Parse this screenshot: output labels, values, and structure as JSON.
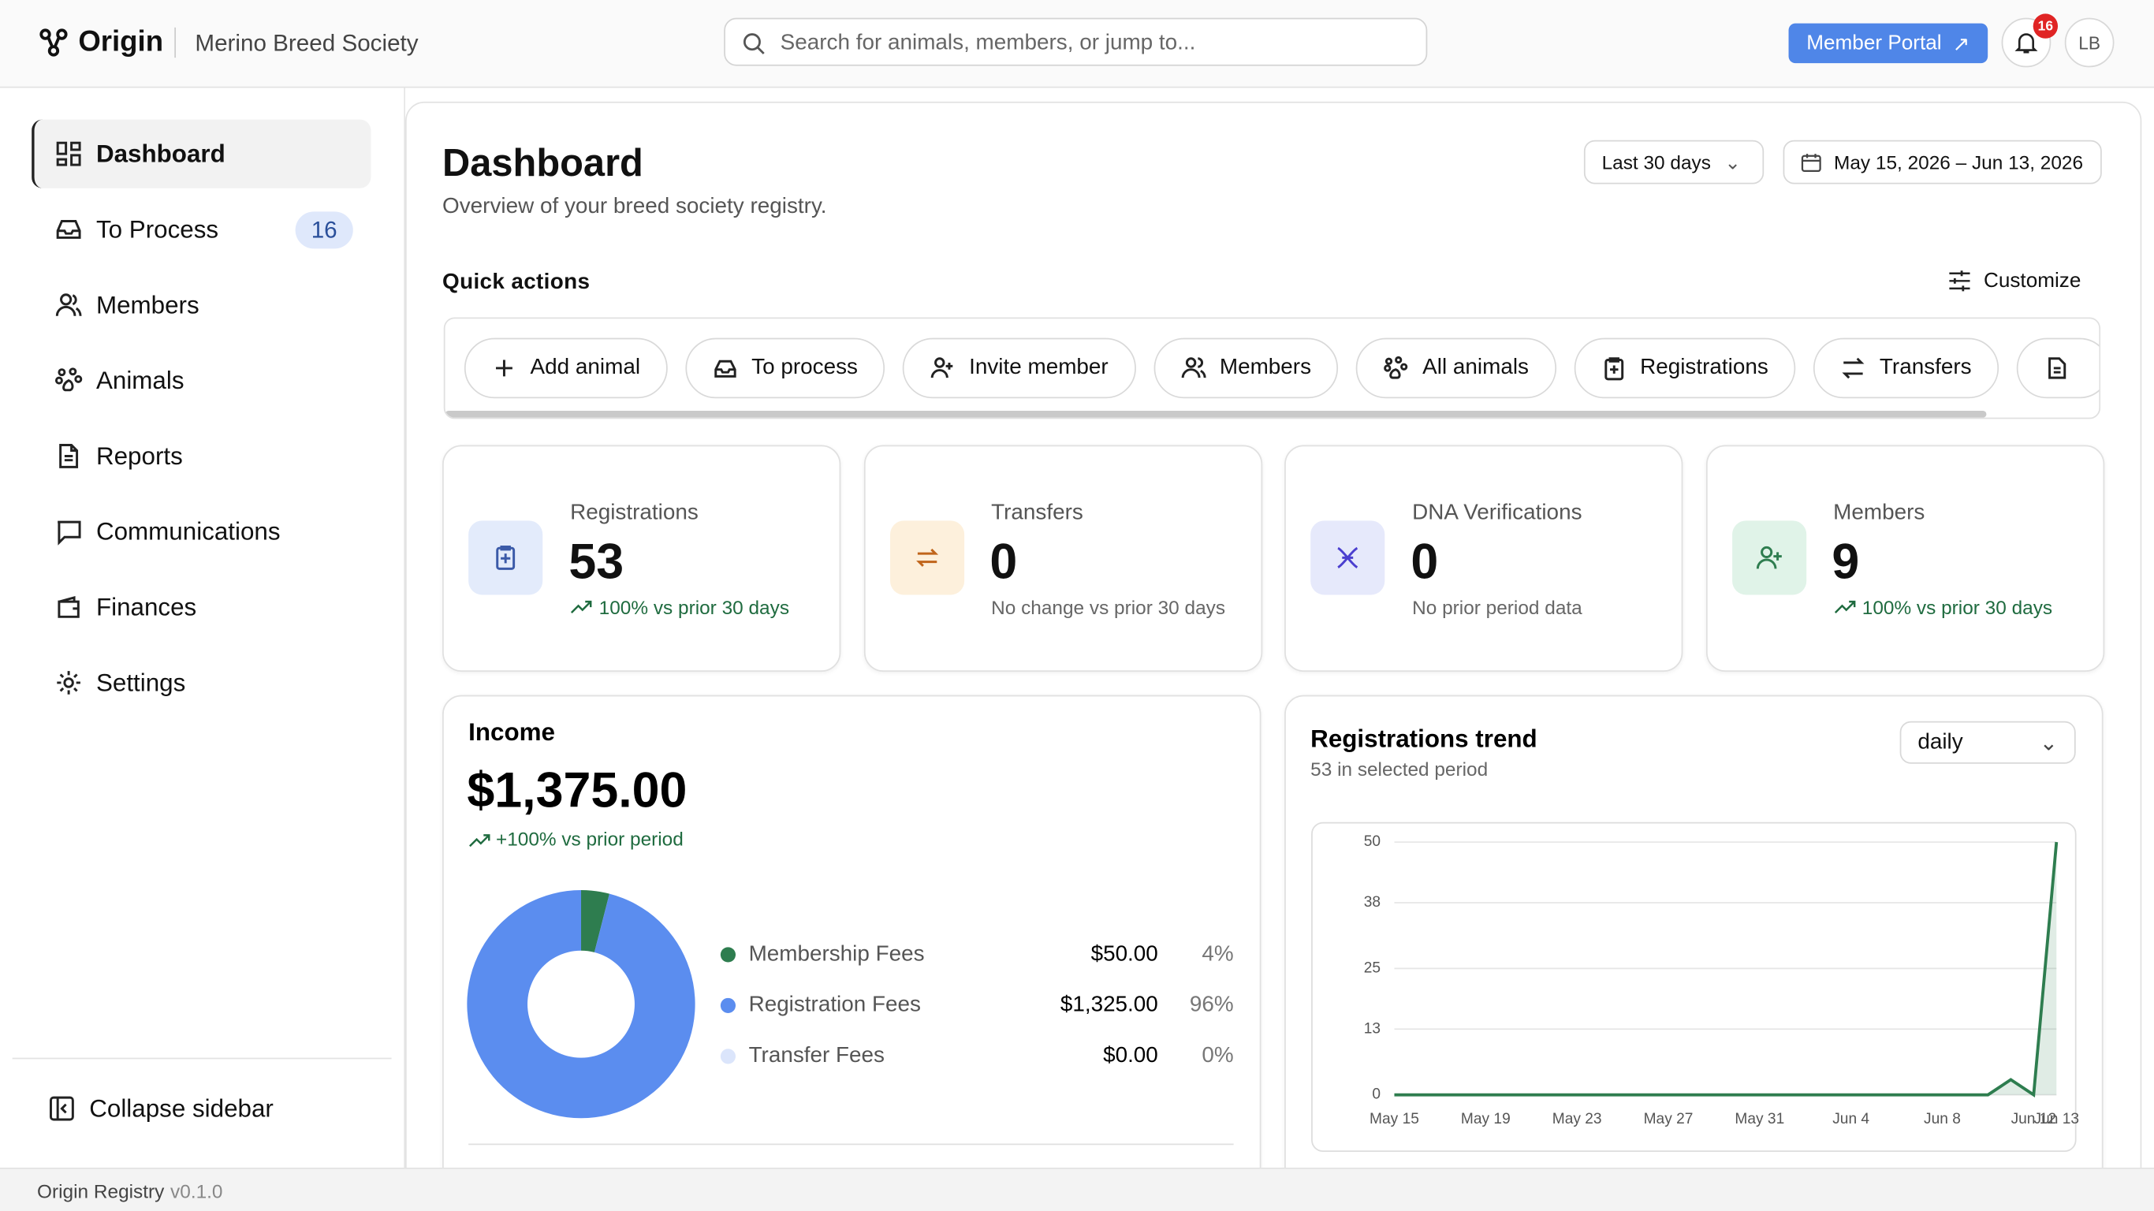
{
  "header": {
    "brand": "Origin",
    "org": "Merino Breed Society",
    "search_placeholder": "Search for animals, members, or jump to...",
    "portal_button": "Member Portal",
    "notifications": "16",
    "avatar": "LB"
  },
  "sidebar": {
    "items": [
      {
        "label": "Dashboard"
      },
      {
        "label": "To Process",
        "badge": "16"
      },
      {
        "label": "Members"
      },
      {
        "label": "Animals"
      },
      {
        "label": "Reports"
      },
      {
        "label": "Communications"
      },
      {
        "label": "Finances"
      },
      {
        "label": "Settings"
      }
    ],
    "collapse": "Collapse sidebar"
  },
  "footer": {
    "app": "Origin Registry",
    "version": "v0.1.0"
  },
  "page": {
    "title": "Dashboard",
    "subtitle": "Overview of your breed society registry.",
    "range_select": "Last 30 days",
    "date_range": "May 15, 2026 – Jun 13, 2026",
    "quick_actions": {
      "title": "Quick actions",
      "customize": "Customize",
      "actions": [
        "Add animal",
        "To process",
        "Invite member",
        "Members",
        "All animals",
        "Registrations",
        "Transfers"
      ]
    },
    "stats": [
      {
        "label": "Registrations",
        "value": "53",
        "change": "100% vs prior 30 days"
      },
      {
        "label": "Transfers",
        "value": "0",
        "change": "No change vs prior 30 days"
      },
      {
        "label": "DNA Verifications",
        "value": "0",
        "change": "No prior period data"
      },
      {
        "label": "Members",
        "value": "9",
        "change": "100% vs prior 30 days"
      }
    ]
  },
  "chart_data": [
    {
      "type": "pie",
      "title": "Income",
      "total": "$1,375.00",
      "change": "+100% vs prior period",
      "categories": [
        "Membership Fees",
        "Registration Fees",
        "Transfer Fees"
      ],
      "values": [
        4,
        96,
        0
      ],
      "value_labels": [
        "4%",
        "96%",
        "0%"
      ],
      "amounts": [
        "$50.00",
        "$1,325.00",
        "$0.00"
      ],
      "colors": [
        "#2e7d4f",
        "#5b8def",
        "#dbe5fb"
      ]
    },
    {
      "type": "line",
      "title": "Registrations trend",
      "subtitle": "53 in selected period",
      "period_select": "daily",
      "categories": [
        "May 15",
        null,
        null,
        null,
        "May 19",
        null,
        null,
        null,
        "May 23",
        null,
        null,
        null,
        "May 27",
        null,
        null,
        null,
        "May 31",
        null,
        null,
        null,
        "Jun 4",
        null,
        null,
        null,
        "Jun 8",
        null,
        null,
        null,
        "Jun 12",
        "Jun 13"
      ],
      "series": [
        {
          "name": "Registrations",
          "color": "#2e7d4f",
          "values": [
            0,
            0,
            0,
            0,
            0,
            0,
            0,
            0,
            0,
            0,
            0,
            0,
            0,
            0,
            0,
            0,
            0,
            0,
            0,
            0,
            0,
            0,
            0,
            0,
            0,
            0,
            0,
            3,
            0,
            50
          ]
        }
      ],
      "ylim": [
        0,
        50
      ],
      "yticks": [
        0,
        13,
        25,
        38,
        50
      ],
      "grid": true
    }
  ]
}
